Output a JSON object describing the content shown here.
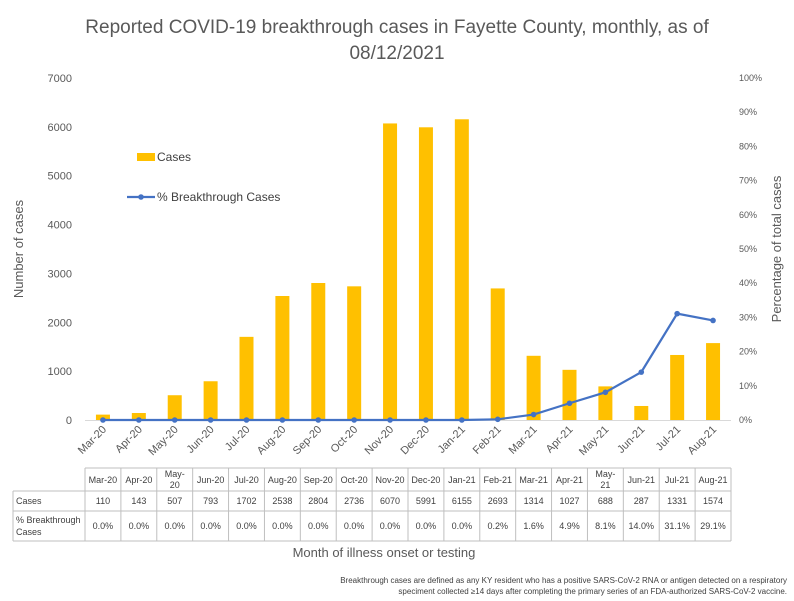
{
  "chart_data": {
    "type": "bar",
    "title": "Reported COVID-19 breakthrough cases in Fayette County, monthly, as of 08/12/2021",
    "title_lines": [
      "Reported COVID-19 breakthrough cases in Fayette County, monthly, as of",
      "08/12/2021"
    ],
    "xlabel": "Month of illness onset or testing",
    "ylabel": "Number of cases",
    "y2label": "Percentage of total cases",
    "categories": [
      "Mar-20",
      "Apr-20",
      "May-20",
      "Jun-20",
      "Jul-20",
      "Aug-20",
      "Sep-20",
      "Oct-20",
      "Nov-20",
      "Dec-20",
      "Jan-21",
      "Feb-21",
      "Mar-21",
      "Apr-21",
      "May-21",
      "Jun-21",
      "Jul-21",
      "Aug-21"
    ],
    "ylim": [
      0,
      7000
    ],
    "y_ticks": [
      "0",
      "1000",
      "2000",
      "3000",
      "4000",
      "5000",
      "6000",
      "7000"
    ],
    "y2lim": [
      0,
      100
    ],
    "y2_ticks": [
      "0%",
      "10%",
      "20%",
      "30%",
      "40%",
      "50%",
      "60%",
      "70%",
      "80%",
      "90%",
      "100%"
    ],
    "grid": false,
    "legend_position": "upper-left",
    "series": [
      {
        "name": "Cases",
        "type": "bar",
        "axis": "left",
        "color": "#FFC000",
        "values": [
          110,
          143,
          507,
          793,
          1702,
          2538,
          2804,
          2736,
          6070,
          5991,
          6155,
          2693,
          1314,
          1027,
          688,
          287,
          1331,
          1574
        ]
      },
      {
        "name": "% Breakthrough Cases",
        "type": "line",
        "axis": "right",
        "color": "#4472C4",
        "values": [
          0.0,
          0.0,
          0.0,
          0.0,
          0.0,
          0.0,
          0.0,
          0.0,
          0.0,
          0.0,
          0.0,
          0.2,
          1.6,
          4.9,
          8.1,
          14.0,
          31.1,
          29.1
        ]
      }
    ],
    "table": {
      "header_labels": [
        "Mar-20",
        "Apr-20",
        "May-\n20",
        "Jun-20",
        "Jul-20",
        "Aug-20",
        "Sep-20",
        "Oct-20",
        "Nov-20",
        "Dec-20",
        "Jan-21",
        "Feb-21",
        "Mar-21",
        "Apr-21",
        "May-\n21",
        "Jun-21",
        "Jul-21",
        "Aug-21"
      ],
      "rows": [
        {
          "label": [
            "Cases"
          ],
          "cells": [
            "110",
            "143",
            "507",
            "793",
            "1702",
            "2538",
            "2804",
            "2736",
            "6070",
            "5991",
            "6155",
            "2693",
            "1314",
            "1027",
            "688",
            "287",
            "1331",
            "1574"
          ]
        },
        {
          "label": [
            "% Breakthrough",
            "Cases"
          ],
          "cells": [
            "0.0%",
            "0.0%",
            "0.0%",
            "0.0%",
            "0.0%",
            "0.0%",
            "0.0%",
            "0.0%",
            "0.0%",
            "0.0%",
            "0.0%",
            "0.2%",
            "1.6%",
            "4.9%",
            "8.1%",
            "14.0%",
            "31.1%",
            "29.1%"
          ]
        }
      ]
    }
  },
  "footnote_lines": [
    "Breakthrough cases are defined as any KY resident who has a positive SARS-CoV-2 RNA or antigen detected on a respiratory",
    "speciment collected ≥14 days after completing the primary series of an FDA-authorized SARS-CoV-2 vaccine."
  ]
}
